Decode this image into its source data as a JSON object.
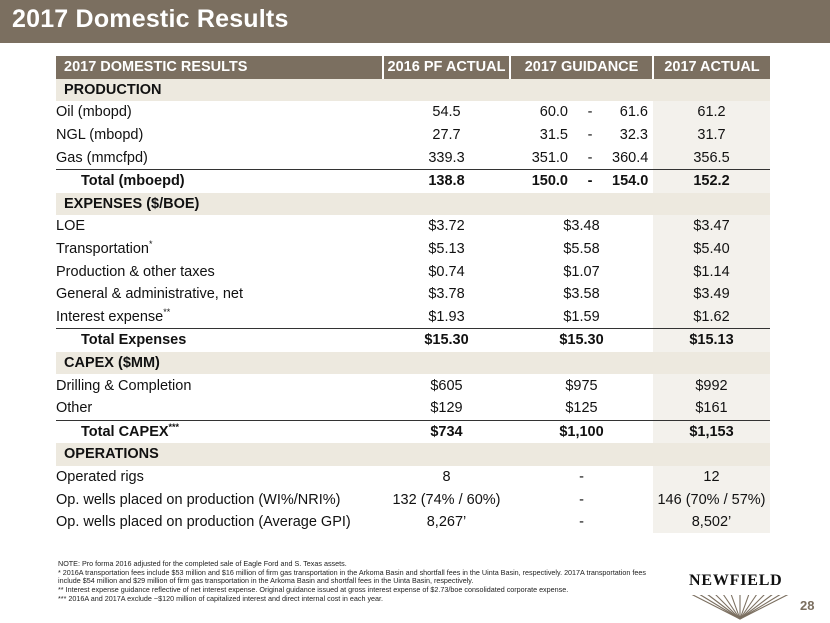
{
  "title": "2017 Domestic Results",
  "table": {
    "headers": [
      "2017 DOMESTIC RESULTS",
      "2016 PF ACTUAL",
      "2017 GUIDANCE",
      "2017 ACTUAL"
    ],
    "sections": [
      {
        "name": "PRODUCTION",
        "rows": [
          {
            "label": "Oil (mbopd)",
            "sup": "",
            "pf": "54.5",
            "g_lo": "60.0",
            "g_dash": "-",
            "g_hi": "61.6",
            "actual": "61.2"
          },
          {
            "label": "NGL (mbopd)",
            "sup": "",
            "pf": "27.7",
            "g_lo": "31.5",
            "g_dash": "-",
            "g_hi": "32.3",
            "actual": "31.7"
          },
          {
            "label": "Gas (mmcfpd)",
            "sup": "",
            "pf": "339.3",
            "g_lo": "351.0",
            "g_dash": "-",
            "g_hi": "360.4",
            "actual": "356.5"
          }
        ],
        "total": {
          "label": "Total (mboepd)",
          "sup": "",
          "pf": "138.8",
          "g_lo": "150.0",
          "g_dash": "-",
          "g_hi": "154.0",
          "actual": "152.2"
        }
      },
      {
        "name": "EXPENSES ($/BOE)",
        "rows": [
          {
            "label": "LOE",
            "sup": "",
            "pf": "$3.72",
            "guidance": "$3.48",
            "actual": "$3.47"
          },
          {
            "label": "Transportation",
            "sup": "*",
            "pf": "$5.13",
            "guidance": "$5.58",
            "actual": "$5.40"
          },
          {
            "label": "Production & other taxes",
            "sup": "",
            "pf": "$0.74",
            "guidance": "$1.07",
            "actual": "$1.14"
          },
          {
            "label": "General & administrative, net",
            "sup": "",
            "pf": "$3.78",
            "guidance": "$3.58",
            "actual": "$3.49"
          },
          {
            "label": "Interest expense",
            "sup": "**",
            "pf": "$1.93",
            "guidance": "$1.59",
            "actual": "$1.62"
          }
        ],
        "total": {
          "label": "Total Expenses",
          "sup": "",
          "pf": "$15.30",
          "guidance": "$15.30",
          "actual": "$15.13"
        }
      },
      {
        "name": "CAPEX ($MM)",
        "rows": [
          {
            "label": "Drilling & Completion",
            "sup": "",
            "pf": "$605",
            "guidance": "$975",
            "actual": "$992"
          },
          {
            "label": "Other",
            "sup": "",
            "pf": "$129",
            "guidance": "$125",
            "actual": "$161"
          }
        ],
        "total": {
          "label": "Total CAPEX",
          "sup": "***",
          "pf": "$734",
          "guidance": "$1,100",
          "actual": "$1,153"
        }
      },
      {
        "name": "OPERATIONS",
        "rows": [
          {
            "label": "Operated rigs",
            "sup": "",
            "pf": "8",
            "guidance": "-",
            "actual": "12"
          },
          {
            "label": "Op. wells placed on production (WI%/NRI%)",
            "sup": "",
            "pf": "132 (74% / 60%)",
            "guidance": "-",
            "actual": "146 (70% / 57%)"
          },
          {
            "label": "Op. wells placed on production (Average GPI)",
            "sup": "",
            "pf": "8,267’",
            "guidance": "-",
            "actual": "8,502’"
          }
        ]
      }
    ]
  },
  "notes": [
    "NOTE: Pro forma 2016 adjusted for the completed sale of Eagle Ford and S. Texas assets.",
    "* 2016A transportation fees include $53 million and $16 million of firm gas transportation in the Arkoma Basin and shortfall fees in the Uinta Basin, respectively. 2017A transportation fees",
    "include $54 million and $29 million of firm gas transportation in the Arkoma Basin and shortfall fees in the Uinta Basin, respectively.",
    "** Interest expense guidance reflective of net interest expense.  Original guidance issued at gross interest expense of $2.73/boe consolidated corporate expense.",
    "*** 2016A and 2017A exclude ~$120 million of capitalized interest and direct internal cost in each year."
  ],
  "logo_text": "NEWFIELD",
  "page_number": "28",
  "colors": {
    "header_bg": "#7b6f60",
    "section_bg": "#ede9df",
    "actual_bg": "#f3f1ec"
  }
}
